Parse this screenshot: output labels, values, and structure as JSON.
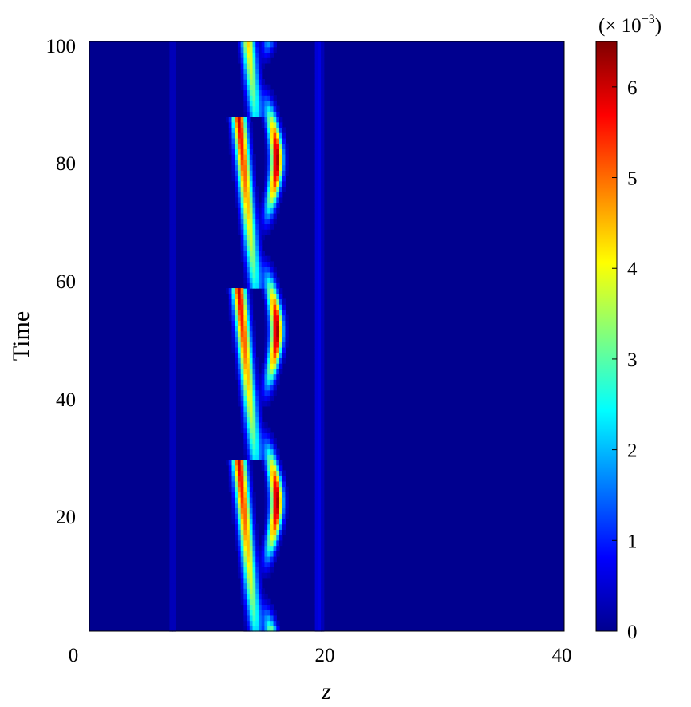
{
  "chart_data": {
    "type": "heatmap",
    "title": "",
    "xlabel": "z",
    "ylabel": "Time",
    "xlim": [
      0,
      40
    ],
    "ylim": [
      0,
      100
    ],
    "x_ticks": [
      "0",
      "20",
      "40"
    ],
    "y_ticks": [
      "20",
      "40",
      "60",
      "80",
      "100"
    ],
    "colormap": "jet",
    "colorbar": {
      "range": [
        0,
        6.5
      ],
      "ticks": [
        "0",
        "1",
        "2",
        "3",
        "4",
        "5",
        "6"
      ],
      "scale_label": {
        "base": "(× 10",
        "exponent": "−3",
        "close": ")"
      }
    },
    "background_value": 0.05,
    "features": [
      {
        "name": "left-branch",
        "amplitude": 6.0,
        "width_z": 0.55,
        "period": 29,
        "z_start": 12.6,
        "z_end": 14.0
      },
      {
        "name": "right-branch",
        "amplitude": 6.4,
        "width_z": 0.5,
        "period": 29,
        "z_center": 15.3,
        "swing": 0.5
      },
      {
        "name": "faint-line",
        "amplitude": 0.6,
        "z_center": 19.3
      },
      {
        "name": "faint-line",
        "amplitude": 0.35,
        "z_center": 7.0
      },
      {
        "name": "faint-line",
        "amplitude": 0.2,
        "z_center": 21.5
      }
    ]
  },
  "colors": {
    "background": "#ffffff",
    "axis": "#000000"
  }
}
